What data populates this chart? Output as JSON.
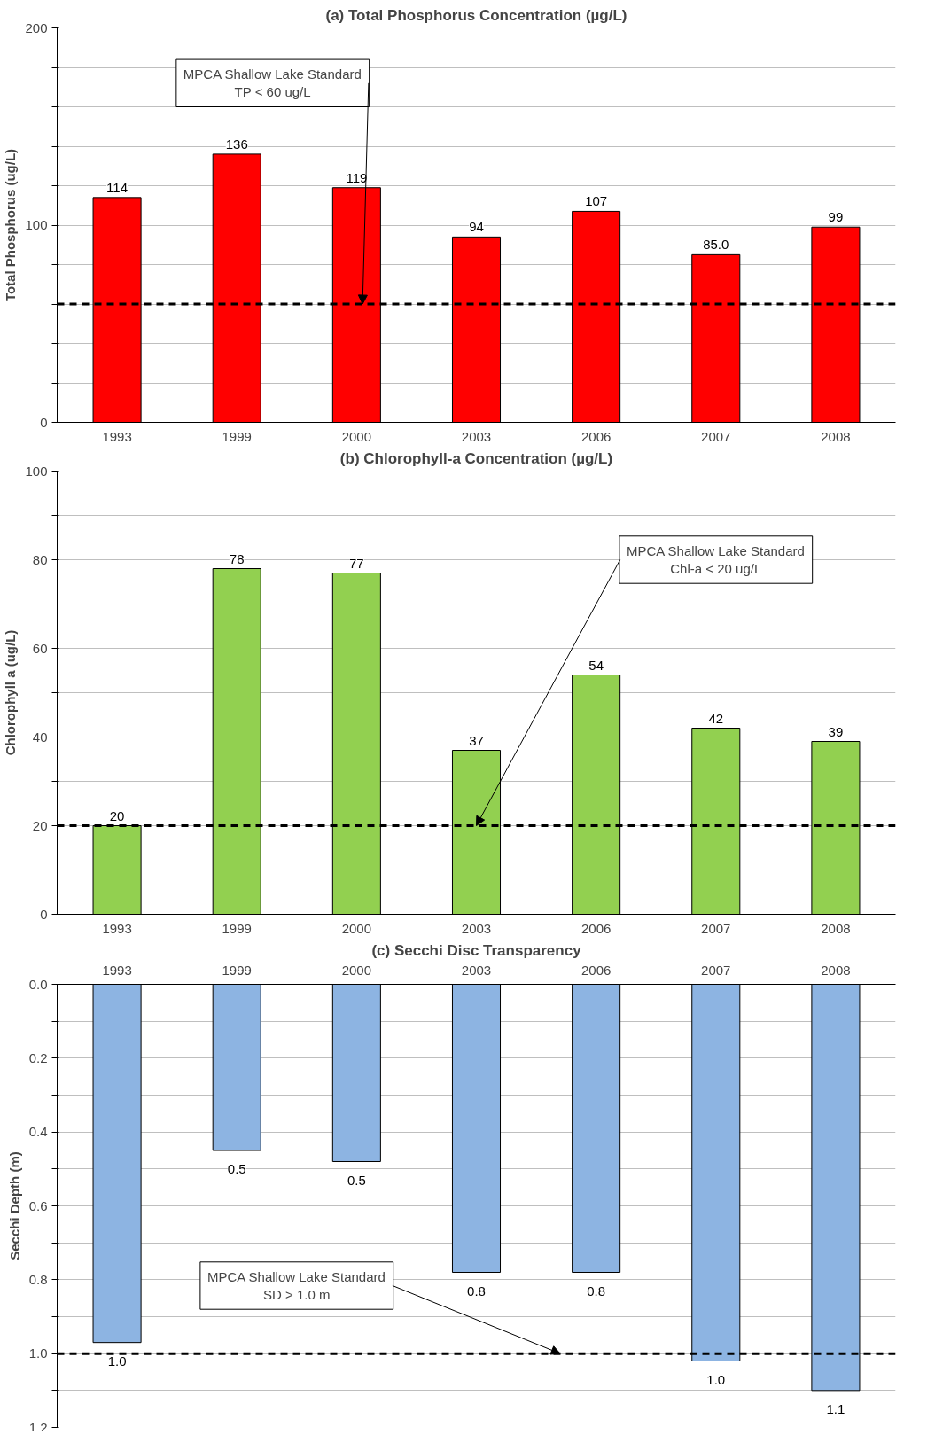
{
  "chart_data": [
    {
      "type": "bar",
      "title": "(a) Total Phosphorus Concentration (µg/L)",
      "ylabel": "Total Phosphorus (ug/L)",
      "categories": [
        "1993",
        "1999",
        "2000",
        "2003",
        "2006",
        "2007",
        "2008"
      ],
      "values": [
        114,
        136,
        119,
        94,
        107,
        85.0,
        99
      ],
      "value_labels": [
        "114",
        "136",
        "119",
        "94",
        "107",
        "85.0",
        "99"
      ],
      "color": "#ff0000",
      "ylim": [
        0,
        200
      ],
      "yticks": [
        0,
        {
          "value": 20,
          "label": null
        },
        {
          "value": 40,
          "label": null
        },
        {
          "value": 60,
          "label": null
        },
        {
          "value": 80,
          "label": null
        },
        100,
        {
          "value": 120,
          "label": null
        },
        {
          "value": 140,
          "label": null
        },
        {
          "value": 160,
          "label": null
        },
        {
          "value": 180,
          "label": null
        },
        200
      ],
      "grid": "y",
      "ref_lines": [
        {
          "axis": "y",
          "value": 60,
          "label": "MPCA Shallow Lake Standard\nTP < 60 ug/L",
          "line_style": "dashed"
        }
      ]
    },
    {
      "type": "bar",
      "title": "(b) Chlorophyll-a Concentration (µg/L)",
      "ylabel": "Chlorophyll a (ug/L)",
      "categories": [
        "1993",
        "1999",
        "2000",
        "2003",
        "2006",
        "2007",
        "2008"
      ],
      "values": [
        20,
        78,
        77,
        37,
        54,
        42,
        39
      ],
      "data_labels": true,
      "color": "#92d050",
      "ylim": [
        0,
        100
      ],
      "yticks": [
        0,
        {
          "value": 10,
          "label": null
        },
        20,
        {
          "value": 30,
          "label": null
        },
        40,
        {
          "value": 50,
          "label": null
        },
        60,
        {
          "value": 70,
          "label": null
        },
        80,
        {
          "value": 90,
          "label": null
        },
        100
      ],
      "grid": "y",
      "ref_lines": [
        {
          "axis": "y",
          "value": 20,
          "label": "MPCA Shallow Lake Standard\nChl-a < 20 ug/L",
          "line_style": "dashed"
        }
      ]
    },
    {
      "type": "bar",
      "title": "(c) Secchi Disc Transparency",
      "ylabel": "Secchi Depth (m)",
      "categories": [
        "1993",
        "1999",
        "2000",
        "2003",
        "2006",
        "2007",
        "2008"
      ],
      "values": [
        0.97,
        0.45,
        0.48,
        0.78,
        0.78,
        1.02,
        1.1
      ],
      "value_labels": [
        "1.0",
        "0.5",
        "0.5",
        "0.8",
        "0.8",
        "1.0",
        "1.1"
      ],
      "color": "#8db4e2",
      "ylim": [
        1.2,
        0
      ],
      "yticks": [
        {
          "value": 0,
          "label": "0.0"
        },
        {
          "value": 0.1,
          "label": null
        },
        0.2,
        {
          "value": 0.3,
          "label": null
        },
        0.4,
        {
          "value": 0.5,
          "label": null
        },
        0.6,
        {
          "value": 0.7,
          "label": null
        },
        0.8,
        {
          "value": 0.9,
          "label": null
        },
        {
          "value": 1.0,
          "label": "1.0"
        },
        {
          "value": 1.1,
          "label": null
        },
        1.2
      ],
      "grid": "y",
      "ref_lines": [
        {
          "axis": "y",
          "value": 1.0,
          "label": "MPCA Shallow Lake Standard\nSD > 1.0 m",
          "line_style": "dashed"
        }
      ]
    }
  ]
}
